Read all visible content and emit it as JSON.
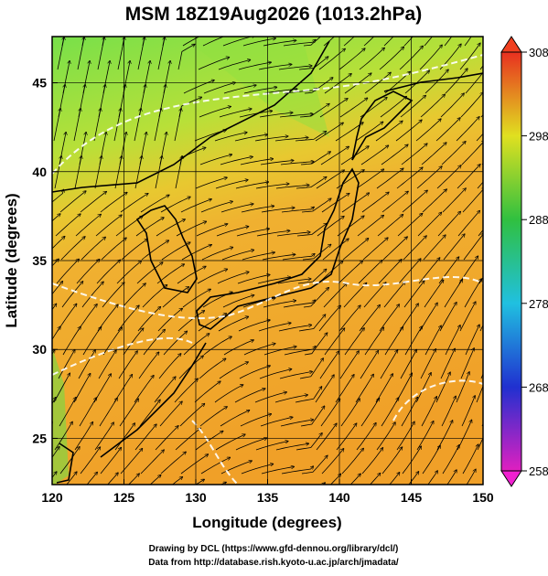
{
  "title": "MSM 18Z19Aug2026 (1013.2hPa)",
  "x_label": "Longitude (degrees)",
  "y_label": "Latitude  (degrees)",
  "xlim": [
    120,
    150
  ],
  "ylim": [
    22.4,
    47.6
  ],
  "xticks": [
    120,
    125,
    130,
    135,
    140,
    145,
    150
  ],
  "yticks": [
    25,
    30,
    35,
    40,
    45
  ],
  "colorbar": {
    "range": [
      258,
      308
    ],
    "ticks": [
      258,
      268,
      278,
      288,
      298,
      308
    ]
  },
  "credits": [
    "Drawing by DCL (https://www.gfd-dennou.org/library/dcl/)",
    "Data from http://database.rish.kyoto-u.ac.jp/arch/jmadata/"
  ]
}
